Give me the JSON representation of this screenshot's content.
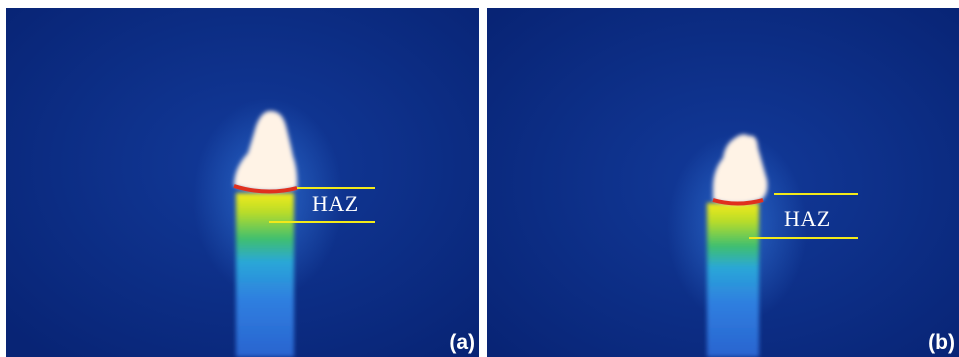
{
  "panels": [
    {
      "zone_label": "HAZ",
      "tag": "(a)"
    },
    {
      "zone_label": "HAZ",
      "tag": "(b)"
    }
  ],
  "colors": {
    "background": "#0a2a86",
    "marker_lines": "#f2ea1a",
    "hot_tip": "#fff3e6",
    "transition_band": "#e0301e"
  }
}
